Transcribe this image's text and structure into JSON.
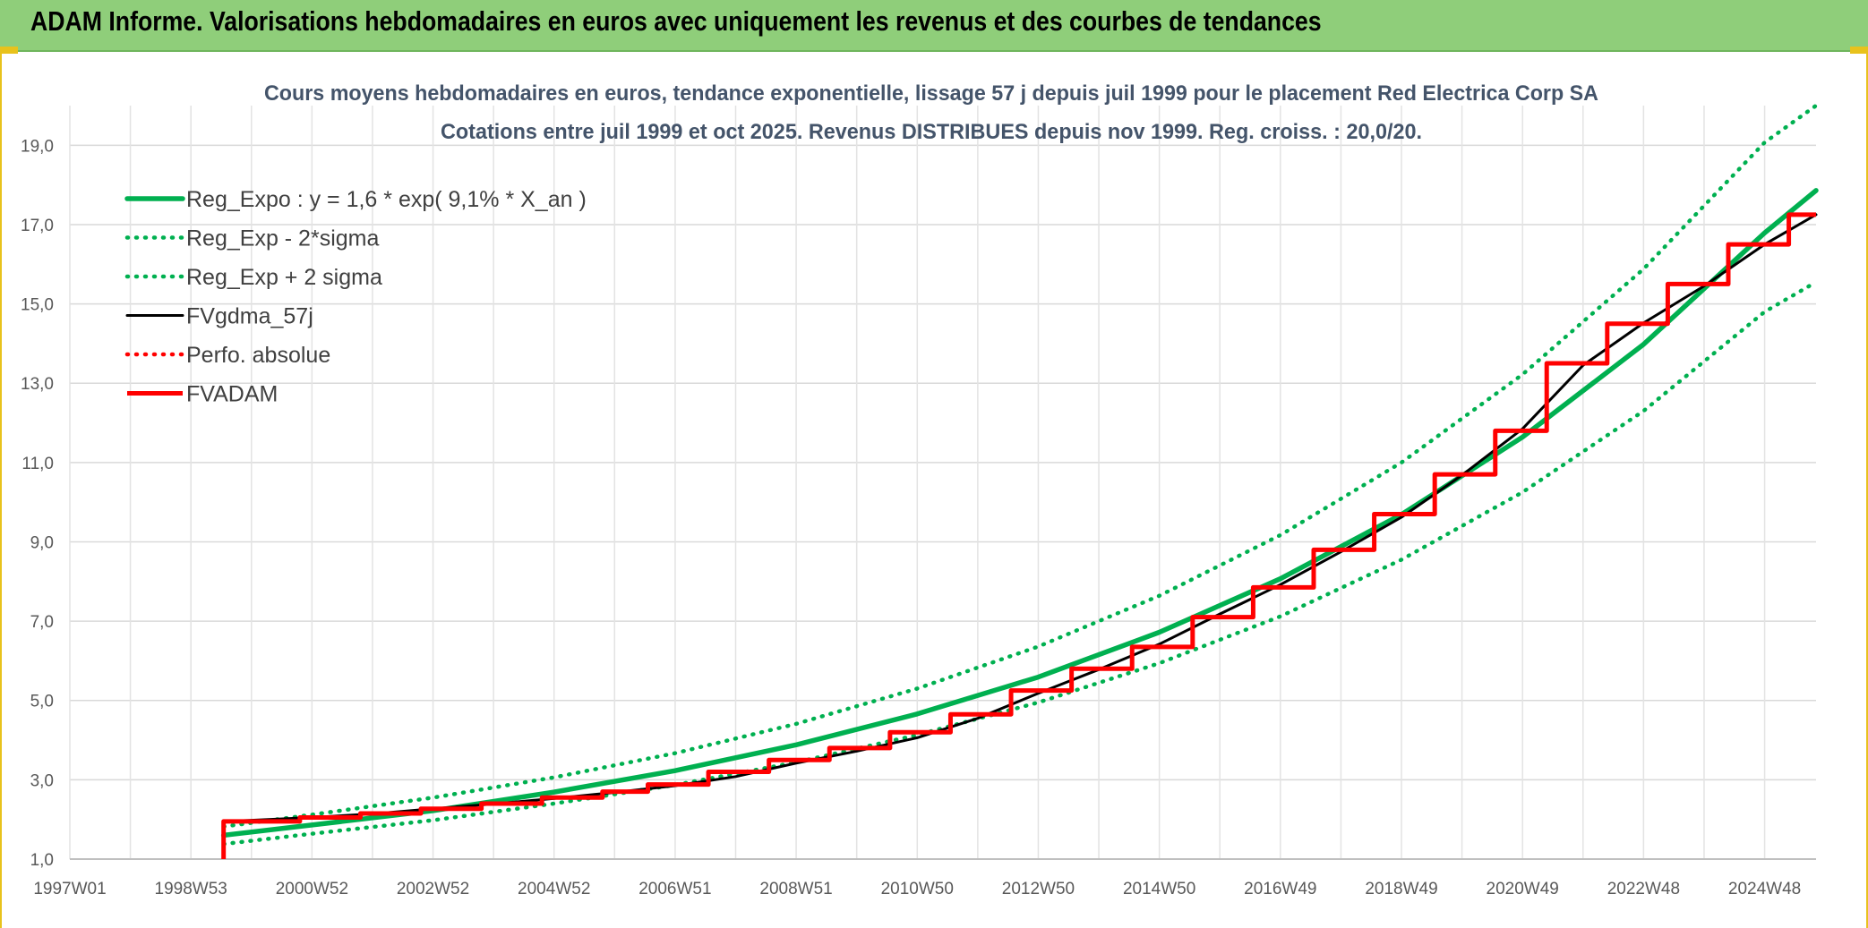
{
  "header": {
    "title": "ADAM Informe. Valorisations hebdomadaires en euros avec uniquement les revenus et des courbes de tendances"
  },
  "colors": {
    "banner": "#8fce7a",
    "reg_expo": "#00b050",
    "fvgdma": "#000000",
    "fvadam": "#ff0000",
    "accent": "#e8c21c"
  },
  "chart_data": {
    "type": "line",
    "title": "Cours moyens hebdomadaires en euros, tendance exponentielle, lissage 57 j depuis juil 1999 pour le placement Red Electrica Corp SA",
    "subtitle": "Cotations entre juil 1999 et oct 2025. Revenus DISTRIBUES depuis nov 1999. Reg. croiss. : 20,0/20.",
    "x_tick_labels": [
      "1997W01",
      "1998W53",
      "2000W52",
      "2002W52",
      "2004W52",
      "2006W51",
      "2008W51",
      "2010W50",
      "2012W50",
      "2014W50",
      "2016W49",
      "2018W49",
      "2020W49",
      "2022W48",
      "2024W48"
    ],
    "x_range": [
      1997.0,
      2025.85
    ],
    "ylim": [
      1.0,
      20.0
    ],
    "y_tick_labels": [
      "1,0",
      "3,0",
      "5,0",
      "7,0",
      "9,0",
      "11,0",
      "13,0",
      "15,0",
      "17,0",
      "19,0"
    ],
    "y_ticks": [
      1,
      3,
      5,
      7,
      9,
      11,
      13,
      15,
      17,
      19
    ],
    "grid": true,
    "legend_position": "top-left",
    "series": [
      {
        "name": "Reg_Expo : y = 1,6 * exp( 9,1% *  X_an )",
        "style": "solid-thick",
        "color": "#00b050",
        "x": [
          1999.54,
          2001,
          2003,
          2005,
          2007,
          2009,
          2011,
          2013,
          2015,
          2017,
          2019,
          2021,
          2023,
          2025,
          2025.85
        ],
        "y": [
          1.6,
          1.86,
          2.22,
          2.69,
          3.23,
          3.88,
          4.66,
          5.59,
          6.72,
          8.07,
          9.69,
          11.64,
          13.98,
          16.79,
          17.86
        ]
      },
      {
        "name": "Reg_Exp - 2*sigma",
        "style": "dotted",
        "color": "#00b050",
        "x": [
          1999.54,
          2001,
          2003,
          2005,
          2007,
          2009,
          2011,
          2013,
          2015,
          2017,
          2019,
          2021,
          2023,
          2025,
          2025.85
        ],
        "y": [
          1.38,
          1.64,
          1.98,
          2.4,
          2.87,
          3.44,
          4.13,
          4.95,
          5.94,
          7.12,
          8.55,
          10.25,
          12.3,
          14.8,
          15.55
        ]
      },
      {
        "name": "Reg_Exp + 2 sigma",
        "style": "dotted",
        "color": "#00b050",
        "x": [
          1999.54,
          2001,
          2003,
          2005,
          2007,
          2009,
          2011,
          2013,
          2015,
          2017,
          2019,
          2021,
          2023,
          2025,
          2025.85
        ],
        "y": [
          1.82,
          2.12,
          2.55,
          3.06,
          3.67,
          4.41,
          5.3,
          6.36,
          7.64,
          9.17,
          11.0,
          13.22,
          15.88,
          19.07,
          20.0
        ]
      },
      {
        "name": "FVgdma_57j",
        "style": "solid",
        "color": "#000000",
        "x": [
          1999.54,
          2000.0,
          2001.0,
          2002.0,
          2003.0,
          2004.0,
          2005.0,
          2006.0,
          2007.0,
          2008.0,
          2009.0,
          2010.0,
          2011.0,
          2012.0,
          2013.0,
          2014.0,
          2015.0,
          2016.0,
          2017.0,
          2018.0,
          2019.0,
          2020.0,
          2021.0,
          2022.0,
          2023.0,
          2024.0,
          2025.0,
          2025.85
        ],
        "y": [
          1.95,
          1.98,
          2.05,
          2.14,
          2.27,
          2.39,
          2.53,
          2.68,
          2.85,
          3.08,
          3.42,
          3.72,
          4.06,
          4.55,
          5.18,
          5.78,
          6.42,
          7.18,
          7.92,
          8.75,
          9.62,
          10.68,
          11.85,
          13.45,
          14.52,
          15.45,
          16.5,
          17.25
        ]
      },
      {
        "name": "Perfo. absolue",
        "style": "dotted",
        "color": "#ff0000",
        "x": [],
        "y": []
      },
      {
        "name": "FVADAM",
        "style": "step-thick",
        "color": "#ff0000",
        "x": [
          1999.54,
          1999.54,
          2000.8,
          2001.8,
          2002.8,
          2003.8,
          2004.8,
          2005.8,
          2006.55,
          2007.55,
          2008.55,
          2009.55,
          2010.55,
          2011.55,
          2012.55,
          2013.55,
          2014.55,
          2015.55,
          2016.55,
          2017.55,
          2018.55,
          2019.55,
          2020.55,
          2021.4,
          2022.4,
          2023.4,
          2024.4,
          2025.4,
          2025.85
        ],
        "y": [
          1.0,
          1.95,
          2.05,
          2.15,
          2.27,
          2.4,
          2.55,
          2.7,
          2.88,
          3.2,
          3.5,
          3.8,
          4.2,
          4.65,
          5.25,
          5.8,
          6.35,
          7.1,
          7.85,
          8.8,
          9.7,
          10.7,
          11.8,
          13.5,
          14.5,
          15.5,
          16.5,
          17.25,
          17.25
        ]
      }
    ]
  }
}
